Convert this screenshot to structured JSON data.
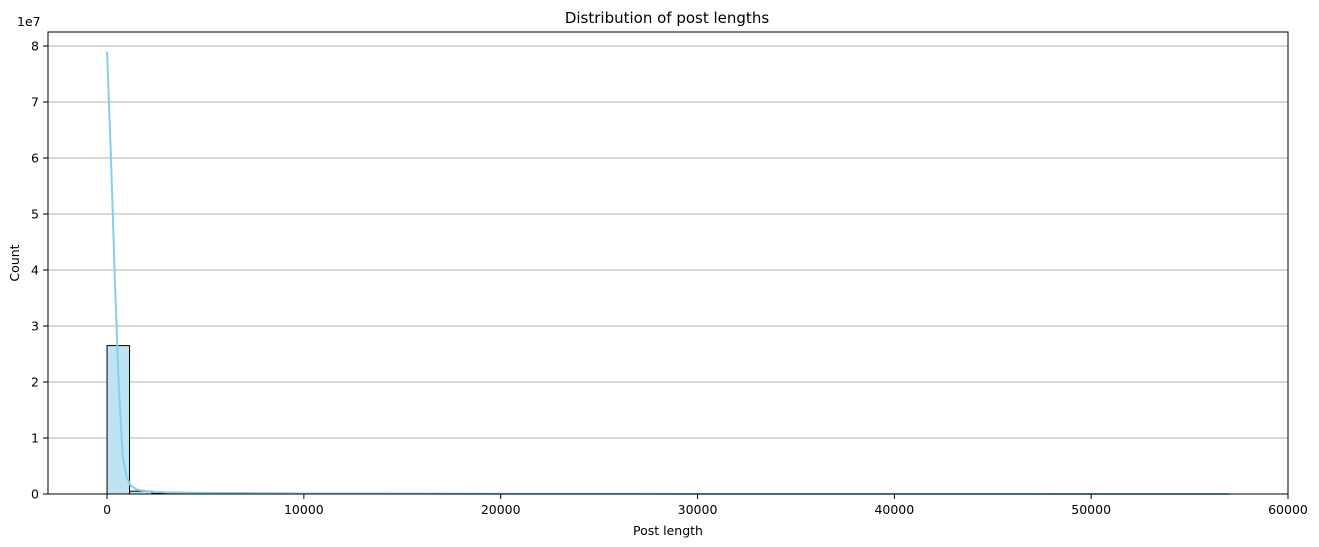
{
  "chart_data": {
    "type": "bar",
    "title": "Distribution of post lengths",
    "xlabel": "Post length",
    "ylabel": "Count",
    "y_offset_label": "1e7",
    "xlim": [
      -3000,
      60000
    ],
    "ylim": [
      0,
      8.25
    ],
    "y_scale": 10000000,
    "x_ticks": [
      0,
      10000,
      20000,
      30000,
      40000,
      50000,
      60000
    ],
    "x_tick_labels": [
      "0",
      "10000",
      "20000",
      "30000",
      "40000",
      "50000",
      "60000"
    ],
    "y_ticks": [
      0,
      1,
      2,
      3,
      4,
      5,
      6,
      7,
      8
    ],
    "y_tick_labels": [
      "0",
      "1",
      "2",
      "3",
      "4",
      "5",
      "6",
      "7",
      "8"
    ],
    "grid": "y",
    "bin_width": 1143,
    "bins": [
      {
        "x0": 0,
        "x1": 1143,
        "count": 2.65
      },
      {
        "x0": 1143,
        "x1": 2286,
        "count": 0.05
      },
      {
        "x0": 2286,
        "x1": 3429,
        "count": 0.01
      }
    ],
    "kde": {
      "color": "#87ceeb",
      "x": [
        0,
        200,
        400,
        600,
        800,
        1000,
        1200,
        1500,
        2000,
        3000,
        5000,
        10000,
        20000,
        30000,
        40000,
        50000,
        57000
      ],
      "y": [
        7.9,
        6.0,
        3.8,
        1.9,
        0.65,
        0.3,
        0.15,
        0.08,
        0.05,
        0.03,
        0.02,
        0.01,
        0.005,
        0.003,
        0.002,
        0.001,
        0.0
      ]
    },
    "bar_fill": "#bfe3f1",
    "bar_edge": "#000000",
    "grid_color": "#b0b0b0"
  }
}
